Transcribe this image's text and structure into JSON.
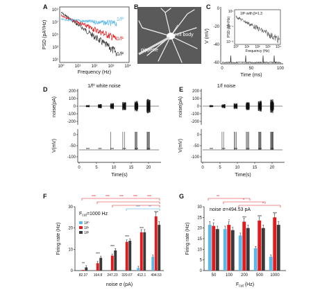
{
  "panels": {
    "A": {
      "letter": "A",
      "ylabel": "PSD (pA²/Hz)",
      "xlabel": "Frequency (Hz)",
      "yticks": [
        "10⁹",
        "10⁷",
        "10⁵",
        "10³",
        "10¹"
      ],
      "xticks": [
        "10⁰",
        "10¹",
        "10²",
        "10³",
        "10⁴"
      ],
      "legend": [
        "1/f⁰",
        "1/f¹",
        "1/f²"
      ]
    },
    "B": {
      "letter": "B",
      "labels": {
        "cell_body": "cell body",
        "pipette": "pippette"
      }
    },
    "C": {
      "letter": "C",
      "ylabel": "V (mV)",
      "xlabel": "Time (ms)",
      "yticks": [
        "0",
        "-20",
        "-40",
        "-60"
      ],
      "xticks": [
        "0",
        "50",
        "100"
      ],
      "inset": {
        "ylabel": "PSD (pA²/Hz)",
        "xlabel": "Frequency (Hz)",
        "label": "1/fᵝ with β=1.3",
        "yticks": [
          "10¹",
          "10⁻¹",
          "10⁻³"
        ],
        "xticks": [
          "10⁰",
          "10¹",
          "10²",
          "10³",
          "10⁴"
        ]
      }
    },
    "D": {
      "letter": "D",
      "title": "1/f⁰ white noise",
      "noise_ylabel": "noise(pA)",
      "v_ylabel": "V(mV)",
      "xlabel": "Time(s)",
      "noise_yticks": [
        "200",
        "100",
        "0",
        "-100",
        "-200"
      ],
      "v_yticks": [
        "0",
        "-50",
        "-100"
      ],
      "xticks": [
        "0",
        "5",
        "10",
        "15",
        "20"
      ]
    },
    "E": {
      "letter": "E",
      "title": "1/f noise",
      "noise_ylabel": "noise(pA)",
      "v_ylabel": "V(mV)",
      "xlabel": "Time(s)",
      "noise_yticks": [
        "200",
        "100",
        "0",
        "-100",
        "-200"
      ],
      "v_yticks": [
        "0",
        "-50",
        "-100"
      ],
      "xticks": [
        "0",
        "5",
        "10",
        "15",
        "20"
      ]
    },
    "F": {
      "letter": "F",
      "annotation": "F<sub>cut</sub>=1000 Hz",
      "annotation_text": "Fcut=1000 Hz",
      "xlabel": "noise σ (pA)",
      "ylabel": "Firing rate (Hz)",
      "legend": [
        "1/f⁰",
        "1/f¹",
        "1/f²"
      ]
    },
    "G": {
      "letter": "G",
      "annotation": "noise σ=494.53 pA",
      "xlabel": "F",
      "xlabel_sub": "cut",
      "xlabel_unit": "(Hz)",
      "ylabel": "Firing rate (Hz)"
    }
  },
  "colors": {
    "f0": "#5bb8e8",
    "f1": "#e31a1c",
    "f2": "#3a3a3a",
    "sig": "#e31a1c",
    "sig2": "#3aa0de"
  },
  "chart_data": [
    {
      "type": "bar",
      "panel": "F",
      "xlabel": "noise σ (pA)",
      "ylabel": "Firing rate (Hz)",
      "ylim": [
        0,
        30
      ],
      "yticks": [
        0,
        10,
        20,
        30
      ],
      "categories": [
        "82.37",
        "164.8",
        "247.23",
        "329.67",
        "412.1",
        "494.53"
      ],
      "series": [
        {
          "name": "1/f⁰",
          "values": [
            0,
            0,
            0,
            0.3,
            1.2,
            6.5
          ]
        },
        {
          "name": "1/f¹",
          "values": [
            0.3,
            3.5,
            7,
            13.5,
            18,
            25.5
          ]
        },
        {
          "name": "1/f²",
          "values": [
            1.5,
            6,
            9.5,
            14,
            18,
            21.5
          ]
        }
      ],
      "significance": [
        "**",
        "***",
        "***",
        "***",
        "***",
        "***"
      ]
    },
    {
      "type": "bar",
      "panel": "G",
      "xlabel": "Fcut (Hz)",
      "ylabel": "Firing rate (Hz)",
      "ylim": [
        0,
        30
      ],
      "yticks": [
        0,
        5,
        10,
        15,
        20,
        25,
        30
      ],
      "categories": [
        "50",
        "100",
        "200",
        "500",
        "1000"
      ],
      "series": [
        {
          "values": [
            21.5,
            19.5,
            16.5,
            10.5,
            6.5
          ]
        },
        {
          "values": [
            21,
            21.5,
            23,
            23.5,
            25
          ]
        },
        {
          "values": [
            19.5,
            19,
            20,
            20,
            21.5
          ]
        }
      ],
      "significance": [
        "*",
        "*",
        "***",
        "***",
        "***"
      ]
    }
  ]
}
